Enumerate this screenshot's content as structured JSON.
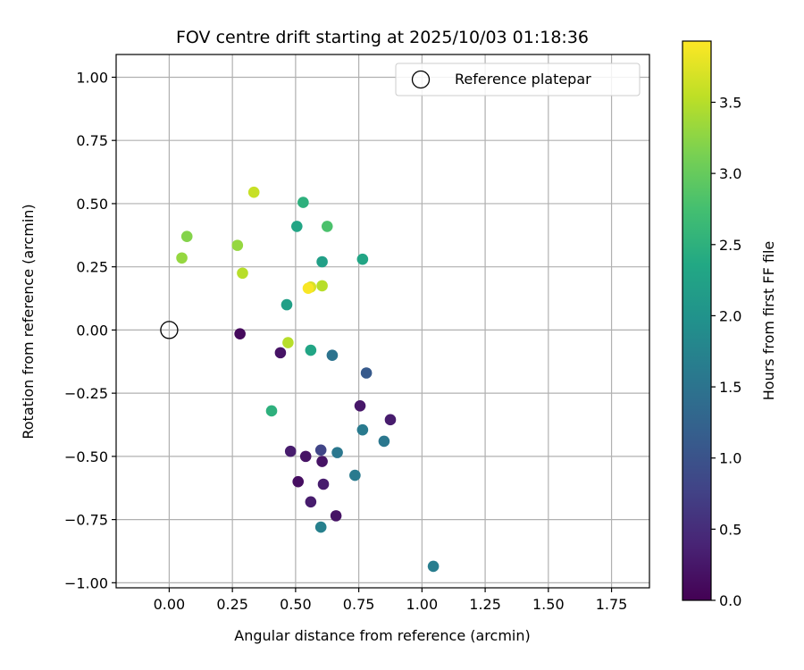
{
  "chart_data": {
    "type": "scatter",
    "title": "FOV centre drift starting at 2025/10/03 01:18:36",
    "xlabel": "Angular distance from reference (arcmin)",
    "ylabel": "Rotation from reference (arcmin)",
    "xlim": [
      -0.21,
      1.9
    ],
    "ylim": [
      -1.02,
      1.09
    ],
    "xticks": [
      "0.00",
      "0.25",
      "0.50",
      "0.75",
      "1.00",
      "1.25",
      "1.50",
      "1.75"
    ],
    "xtick_values": [
      0,
      0.25,
      0.5,
      0.75,
      1.0,
      1.25,
      1.5,
      1.75
    ],
    "yticks": [
      "1.00",
      "0.75",
      "0.50",
      "0.25",
      "0.00",
      "−0.25",
      "−0.50",
      "−0.75",
      "−1.00"
    ],
    "ytick_values": [
      1.0,
      0.75,
      0.5,
      0.25,
      0,
      -0.25,
      -0.5,
      -0.75,
      -1.0
    ],
    "grid": true,
    "legend": {
      "position": "top-right",
      "label": "Reference platepar"
    },
    "reference_point": {
      "x": 0.0,
      "y": 0.0
    },
    "colorbar": {
      "label": "Hours from first FF file",
      "range": [
        0.0,
        3.93
      ],
      "colormap": "viridis",
      "ticks": [
        "0.0",
        "0.5",
        "1.0",
        "1.5",
        "2.0",
        "2.5",
        "3.0",
        "3.5"
      ],
      "tick_values": [
        0.0,
        0.5,
        1.0,
        1.5,
        2.0,
        2.5,
        3.0,
        3.5
      ]
    },
    "points": [
      {
        "x": 0.28,
        "y": -0.015,
        "c": 0.1
      },
      {
        "x": 0.44,
        "y": -0.09,
        "c": 0.2
      },
      {
        "x": 0.755,
        "y": -0.3,
        "c": 0.25
      },
      {
        "x": 0.875,
        "y": -0.355,
        "c": 0.3
      },
      {
        "x": 0.48,
        "y": -0.48,
        "c": 0.3
      },
      {
        "x": 0.54,
        "y": -0.5,
        "c": 0.2
      },
      {
        "x": 0.605,
        "y": -0.52,
        "c": 0.2
      },
      {
        "x": 0.51,
        "y": -0.6,
        "c": 0.15
      },
      {
        "x": 0.61,
        "y": -0.61,
        "c": 0.3
      },
      {
        "x": 0.56,
        "y": -0.68,
        "c": 0.3
      },
      {
        "x": 0.66,
        "y": -0.735,
        "c": 0.2
      },
      {
        "x": 0.6,
        "y": -0.475,
        "c": 0.8
      },
      {
        "x": 0.78,
        "y": -0.17,
        "c": 1.1
      },
      {
        "x": 0.645,
        "y": -0.1,
        "c": 1.5
      },
      {
        "x": 0.765,
        "y": -0.395,
        "c": 1.6
      },
      {
        "x": 0.85,
        "y": -0.44,
        "c": 1.55
      },
      {
        "x": 0.665,
        "y": -0.485,
        "c": 1.55
      },
      {
        "x": 0.735,
        "y": -0.575,
        "c": 1.6
      },
      {
        "x": 0.6,
        "y": -0.78,
        "c": 1.7
      },
      {
        "x": 1.045,
        "y": -0.935,
        "c": 1.65
      },
      {
        "x": 0.465,
        "y": 0.1,
        "c": 2.2
      },
      {
        "x": 0.56,
        "y": -0.08,
        "c": 2.3
      },
      {
        "x": 0.405,
        "y": -0.32,
        "c": 2.5
      },
      {
        "x": 0.605,
        "y": 0.27,
        "c": 2.2
      },
      {
        "x": 0.765,
        "y": 0.28,
        "c": 2.3
      },
      {
        "x": 0.505,
        "y": 0.41,
        "c": 2.3
      },
      {
        "x": 0.53,
        "y": 0.505,
        "c": 2.5
      },
      {
        "x": 0.625,
        "y": 0.41,
        "c": 2.8
      },
      {
        "x": 0.07,
        "y": 0.37,
        "c": 3.2
      },
      {
        "x": 0.05,
        "y": 0.285,
        "c": 3.3
      },
      {
        "x": 0.27,
        "y": 0.335,
        "c": 3.3
      },
      {
        "x": 0.29,
        "y": 0.225,
        "c": 3.5
      },
      {
        "x": 0.335,
        "y": 0.545,
        "c": 3.6
      },
      {
        "x": 0.605,
        "y": 0.175,
        "c": 3.5
      },
      {
        "x": 0.47,
        "y": -0.05,
        "c": 3.5
      },
      {
        "x": 0.56,
        "y": 0.17,
        "c": 3.7
      },
      {
        "x": 0.55,
        "y": 0.165,
        "c": 3.9
      }
    ]
  },
  "colors": {
    "reference_marker": "#000000",
    "grid": "#b0b0b0"
  }
}
